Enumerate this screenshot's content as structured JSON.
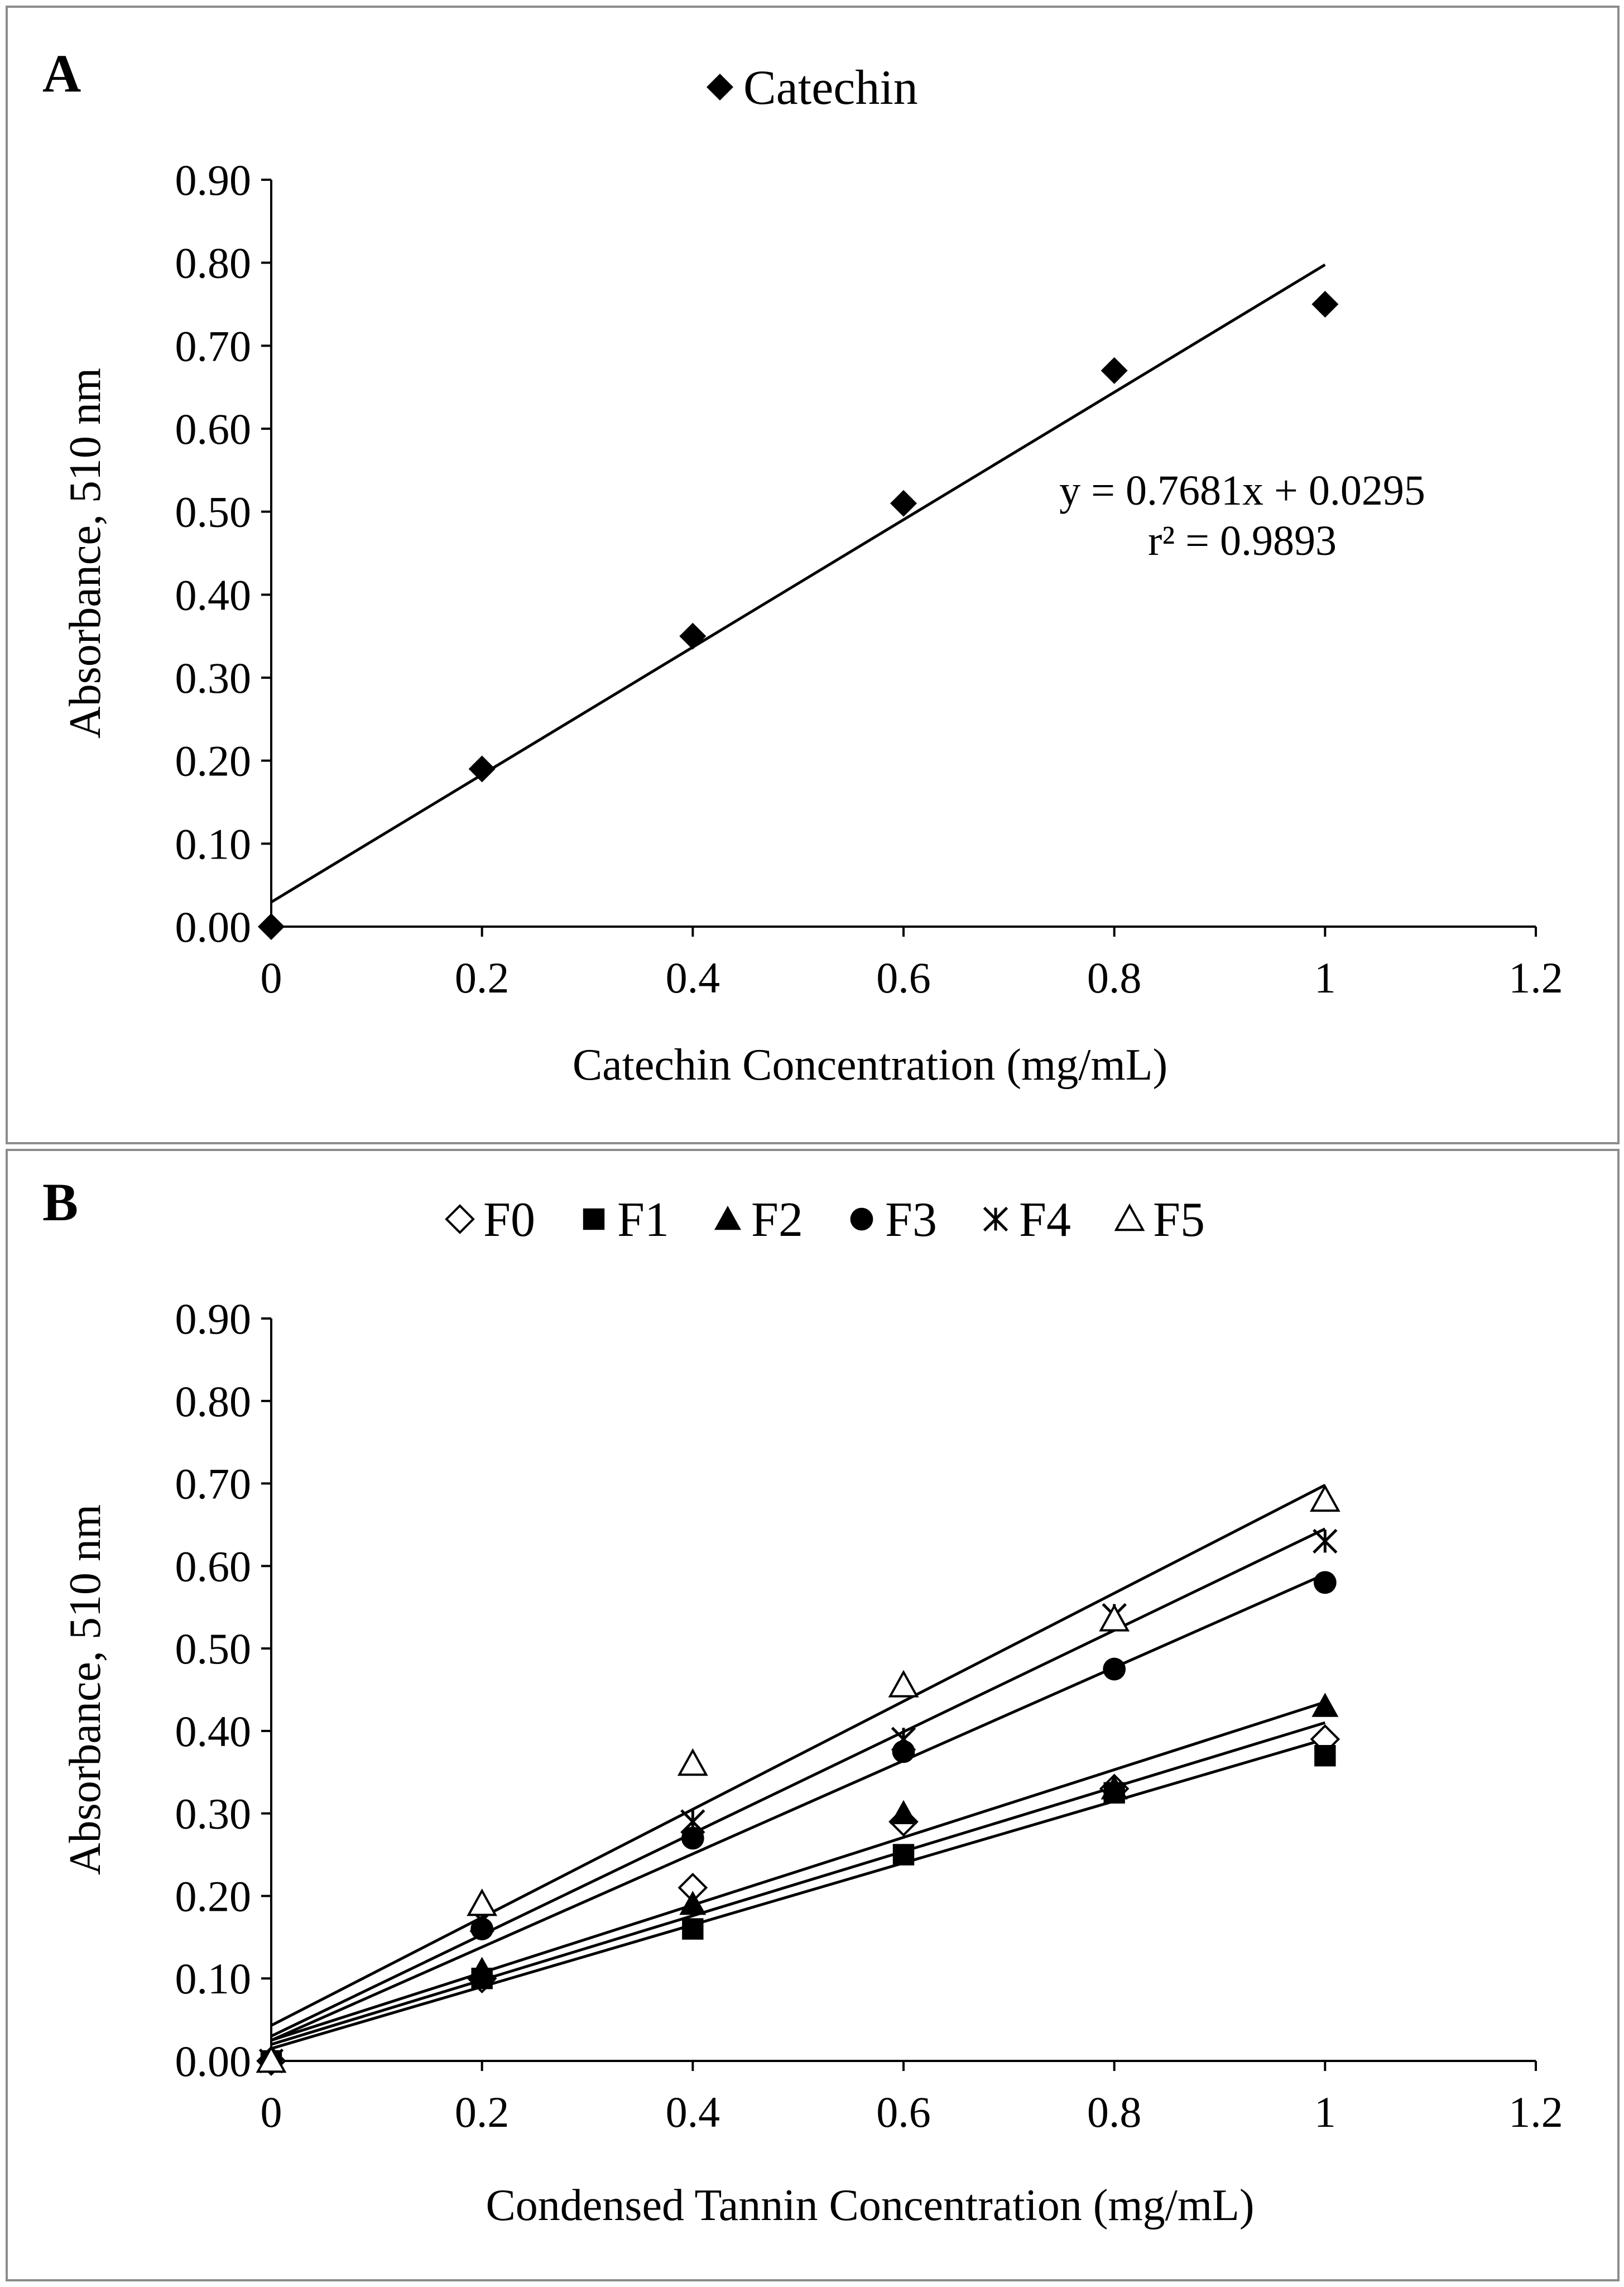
{
  "chart_data": [
    {
      "type": "scatter",
      "panel_label": "A",
      "legend": [
        "Catechin"
      ],
      "legend_position": "top",
      "xlabel": "Catechin Concentration (mg/mL)",
      "ylabel": "Absorbance, 510 nm",
      "xlim": [
        0,
        1.2
      ],
      "ylim": [
        0,
        0.9
      ],
      "xticks": [
        "0",
        "0.2",
        "0.4",
        "0.6",
        "0.8",
        "1",
        "1.2"
      ],
      "yticks": [
        "0.00",
        "0.10",
        "0.20",
        "0.30",
        "0.40",
        "0.50",
        "0.60",
        "0.70",
        "0.80",
        "0.90"
      ],
      "grid": false,
      "series": [
        {
          "name": "Catechin",
          "marker": "diamond-filled",
          "x": [
            0,
            0.2,
            0.4,
            0.6,
            0.8,
            1.0
          ],
          "y": [
            0.0,
            0.19,
            0.35,
            0.51,
            0.67,
            0.75
          ],
          "trendline": {
            "slope": 0.7681,
            "intercept": 0.0295
          }
        }
      ],
      "annotations": {
        "equation": "y = 0.7681x + 0.0295",
        "r2": "r² = 0.9893"
      }
    },
    {
      "type": "scatter",
      "panel_label": "B",
      "legend": [
        "F0",
        "F1",
        "F2",
        "F3",
        "F4",
        "F5"
      ],
      "legend_position": "top",
      "xlabel": "Condensed Tannin Concentration (mg/mL)",
      "ylabel": "Absorbance, 510 nm",
      "xlim": [
        0,
        1.2
      ],
      "ylim": [
        0,
        0.9
      ],
      "xticks": [
        "0",
        "0.2",
        "0.4",
        "0.6",
        "0.8",
        "1",
        "1.2"
      ],
      "yticks": [
        "0.00",
        "0.10",
        "0.20",
        "0.30",
        "0.40",
        "0.50",
        "0.60",
        "0.70",
        "0.80",
        "0.90"
      ],
      "grid": false,
      "series": [
        {
          "name": "F0",
          "marker": "diamond-open",
          "x": [
            0,
            0.2,
            0.4,
            0.6,
            0.8,
            1.0
          ],
          "y": [
            0.0,
            0.1,
            0.21,
            0.29,
            0.33,
            0.39
          ],
          "trendline": {
            "slope": 0.39,
            "intercept": 0.02
          }
        },
        {
          "name": "F1",
          "marker": "square-filled",
          "x": [
            0,
            0.2,
            0.4,
            0.6,
            0.8,
            1.0
          ],
          "y": [
            0.0,
            0.1,
            0.16,
            0.25,
            0.325,
            0.37
          ],
          "trendline": {
            "slope": 0.375,
            "intercept": 0.015
          }
        },
        {
          "name": "F2",
          "marker": "triangle-filled",
          "x": [
            0,
            0.2,
            0.4,
            0.6,
            0.8,
            1.0
          ],
          "y": [
            0.0,
            0.11,
            0.19,
            0.3,
            0.33,
            0.43
          ],
          "trendline": {
            "slope": 0.41,
            "intercept": 0.025
          }
        },
        {
          "name": "F3",
          "marker": "circle-filled",
          "x": [
            0,
            0.2,
            0.4,
            0.6,
            0.8,
            1.0
          ],
          "y": [
            0.0,
            0.16,
            0.27,
            0.375,
            0.475,
            0.58
          ],
          "trendline": {
            "slope": 0.565,
            "intercept": 0.025
          }
        },
        {
          "name": "F4",
          "marker": "asterisk",
          "x": [
            0,
            0.2,
            0.4,
            0.6,
            0.8,
            1.0
          ],
          "y": [
            0.0,
            0.17,
            0.29,
            0.39,
            0.54,
            0.63
          ],
          "trendline": {
            "slope": 0.615,
            "intercept": 0.03
          }
        },
        {
          "name": "F5",
          "marker": "triangle-open",
          "x": [
            0,
            0.2,
            0.4,
            0.6,
            0.8,
            1.0
          ],
          "y": [
            0.0,
            0.19,
            0.36,
            0.455,
            0.535,
            0.68
          ],
          "trendline": {
            "slope": 0.655,
            "intercept": 0.043
          }
        }
      ]
    }
  ]
}
